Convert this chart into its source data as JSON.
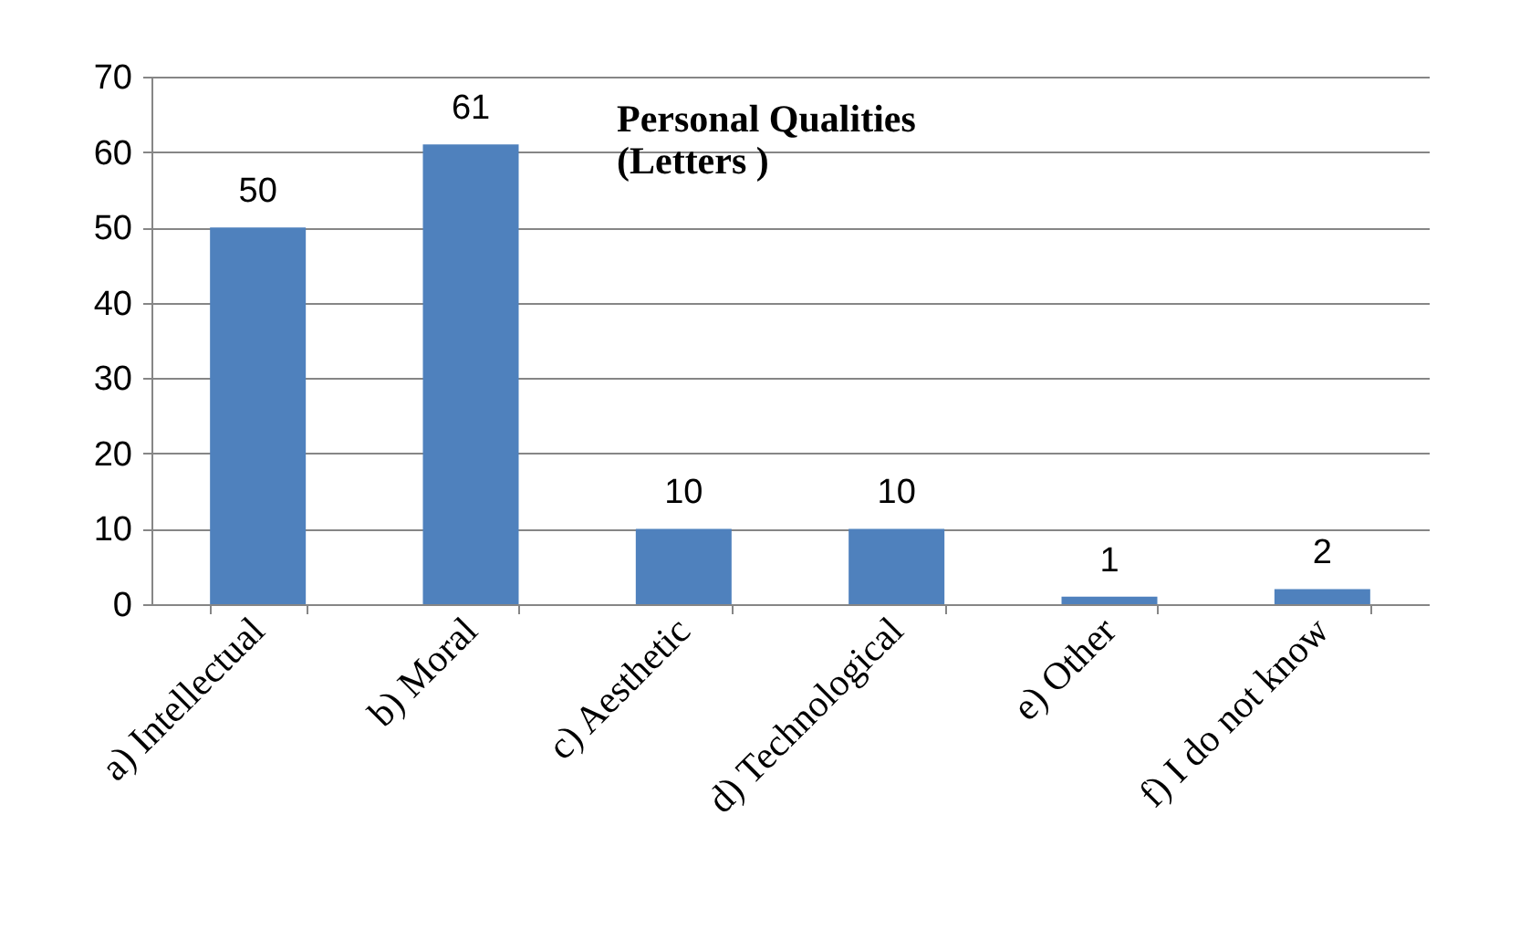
{
  "chart_data": {
    "type": "bar",
    "title": [
      "Personal Qualities",
      "(Letters )"
    ],
    "categories": [
      "a)    Intellectual",
      "b)   Moral",
      "c)   Aesthetic",
      "d)   Technological",
      "e)   Other",
      "f)   I do not know"
    ],
    "values": [
      50,
      61,
      10,
      10,
      1,
      2
    ],
    "color": "#4f81bd",
    "ylim": [
      0,
      70
    ],
    "yticks": [
      0,
      10,
      20,
      30,
      40,
      50,
      60,
      70
    ],
    "grid": "y",
    "data_labels": true
  }
}
